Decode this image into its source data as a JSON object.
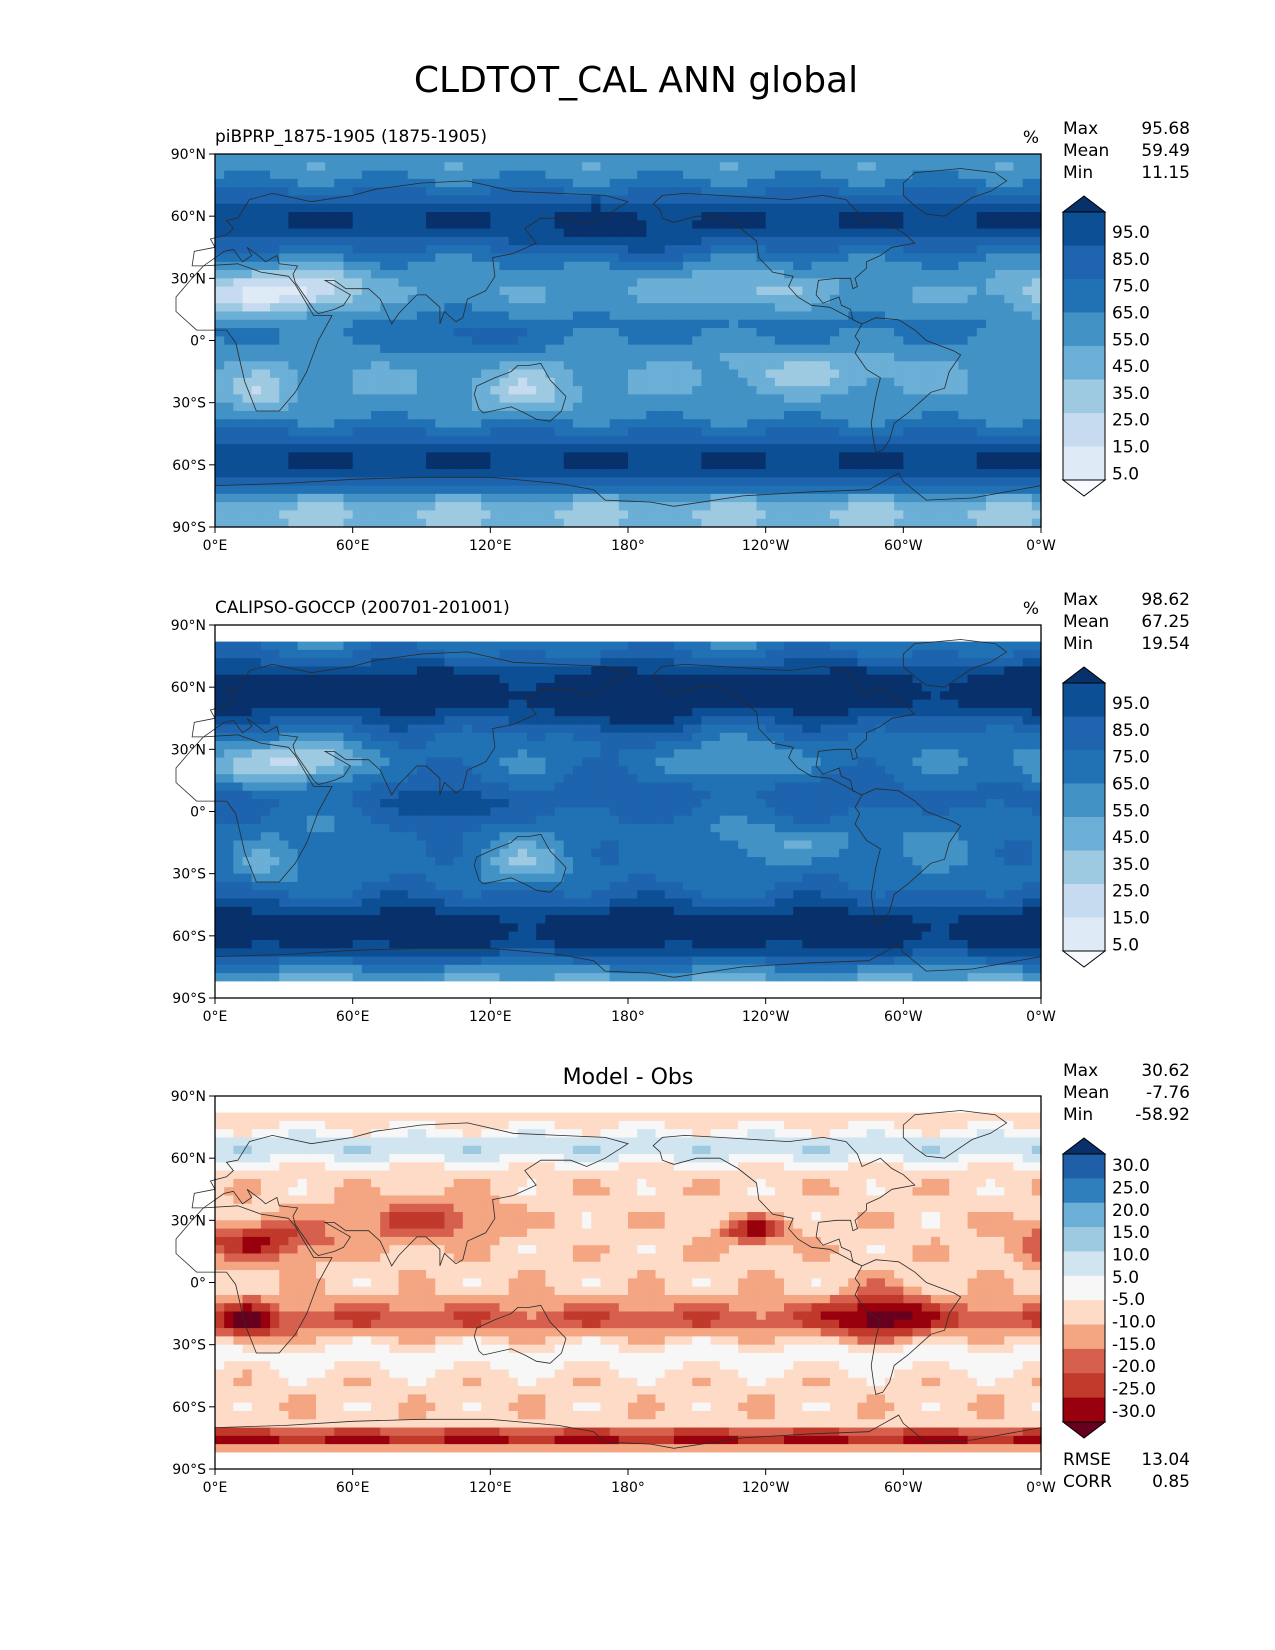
{
  "figure": {
    "title": "CLDTOT_CAL ANN global"
  },
  "colors": {
    "blues": [
      "#f7fbff",
      "#deebf7",
      "#c6dbef",
      "#9ecae1",
      "#6baed6",
      "#4292c6",
      "#2171b5",
      "#1d63ad",
      "#0d4f94",
      "#08306b"
    ],
    "diff": [
      "#67001f",
      "#99000d",
      "#c0392b",
      "#d6604d",
      "#f4a582",
      "#fddbc7",
      "#f7f7f7",
      "#d1e5f0",
      "#9ecae1",
      "#6baed6",
      "#2f7fbd",
      "#1f5fa8",
      "#08306b"
    ],
    "land": "#2b2b2b"
  },
  "chart_data": [
    {
      "type": "heatmap",
      "id": "model",
      "title": "piBPRP_1875-1905 (1875-1905)",
      "units": "%",
      "stats": [
        {
          "label": "Max",
          "value": "95.68"
        },
        {
          "label": "Mean",
          "value": "59.49"
        },
        {
          "label": "Min",
          "value": "11.15"
        }
      ],
      "x_ticks": [
        "0°E",
        "60°E",
        "120°E",
        "180°",
        "120°W",
        "60°W",
        "0°W"
      ],
      "y_ticks": [
        "90°N",
        "60°N",
        "30°N",
        "0°",
        "30°S",
        "60°S",
        "90°S"
      ],
      "colorbar_labels": [
        "95.0",
        "85.0",
        "75.0",
        "65.0",
        "55.0",
        "45.0",
        "35.0",
        "25.0",
        "15.0",
        "5.0"
      ],
      "value_range": [
        0,
        100
      ],
      "lat_range": [
        -90,
        90
      ]
    },
    {
      "type": "heatmap",
      "id": "obs",
      "title": "CALIPSO-GOCCP (200701-201001)",
      "units": "%",
      "stats": [
        {
          "label": "Max",
          "value": "98.62"
        },
        {
          "label": "Mean",
          "value": "67.25"
        },
        {
          "label": "Min",
          "value": "19.54"
        }
      ],
      "x_ticks": [
        "0°E",
        "60°E",
        "120°E",
        "180°",
        "120°W",
        "60°W",
        "0°W"
      ],
      "y_ticks": [
        "90°N",
        "60°N",
        "30°N",
        "0°",
        "30°S",
        "60°S",
        "90°S"
      ],
      "colorbar_labels": [
        "95.0",
        "85.0",
        "75.0",
        "65.0",
        "55.0",
        "45.0",
        "35.0",
        "25.0",
        "15.0",
        "5.0"
      ],
      "value_range": [
        0,
        100
      ],
      "lat_range": [
        -82,
        82
      ]
    },
    {
      "type": "heatmap",
      "id": "diff",
      "title": "Model - Obs",
      "units": "",
      "stats": [
        {
          "label": "Max",
          "value": "30.62"
        },
        {
          "label": "Mean",
          "value": "-7.76"
        },
        {
          "label": "Min",
          "value": "-58.92"
        }
      ],
      "extra_stats": [
        {
          "label": "RMSE",
          "value": "13.04"
        },
        {
          "label": "CORR",
          "value": "0.85"
        }
      ],
      "x_ticks": [
        "0°E",
        "60°E",
        "120°E",
        "180°",
        "120°W",
        "60°W",
        "0°W"
      ],
      "y_ticks": [
        "90°N",
        "60°N",
        "30°N",
        "0°",
        "30°S",
        "60°S",
        "90°S"
      ],
      "colorbar_labels": [
        "30.0",
        "25.0",
        "20.0",
        "15.0",
        "10.0",
        "5.0",
        "-5.0",
        "-10.0",
        "-15.0",
        "-20.0",
        "-25.0",
        "-30.0"
      ],
      "value_range": [
        -35,
        35
      ],
      "lat_range": [
        -82,
        82
      ]
    }
  ]
}
